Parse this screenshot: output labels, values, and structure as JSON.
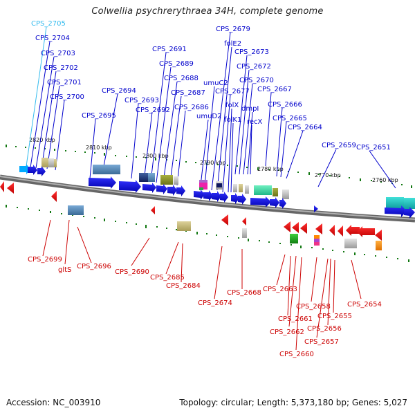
{
  "title": "Colwellia psychrerythraea 34H, complete genome",
  "footer": {
    "accession": "Accession: NC_003910",
    "summary": "Topology: circular; Length: 5,373,180 bp; Genes: 5,027"
  },
  "colors": {
    "forward_strand": "#0000e0",
    "reverse_strand": "#ee0000",
    "backbone": "#888888",
    "tick": "#117711"
  },
  "kbp_marks": [
    "2820 kbp",
    "2810 kbp",
    "2800 kbp",
    "2790 kbp",
    "2780 kbp",
    "2770 kbp",
    "2760 kbp"
  ],
  "top_labels": [
    "CPS_2705",
    "CPS_2704",
    "CPS_2703",
    "CPS_2702",
    "CPS_2701",
    "CPS_2700",
    "CPS_2695",
    "CPS_2694",
    "CPS_2693",
    "CPS_2692",
    "CPS_2691",
    "CPS_2689",
    "CPS_2688",
    "CPS_2687",
    "CPS_2686",
    "umuD2",
    "umuC2",
    "CPS_2679",
    "folE2",
    "CPS_2677",
    "folX",
    "folK1",
    "CPS_2673",
    "CPS_2672",
    "CPS_2670",
    "dmpI",
    "recX",
    "CPS_2667",
    "CPS_2666",
    "CPS_2665",
    "CPS_2664",
    "CPS_2659",
    "CPS_2651"
  ],
  "bottom_labels": [
    "CPS_2699",
    "gltS",
    "CPS_2696",
    "CPS_2690",
    "CPS_2685",
    "CPS_2684",
    "CPS_2674",
    "CPS_2668",
    "CPS_2663",
    "CPS_2661",
    "CPS_2662",
    "CPS_2660",
    "CPS_2658",
    "CPS_2657",
    "CPS_2656",
    "CPS_2655",
    "CPS_2654"
  ]
}
